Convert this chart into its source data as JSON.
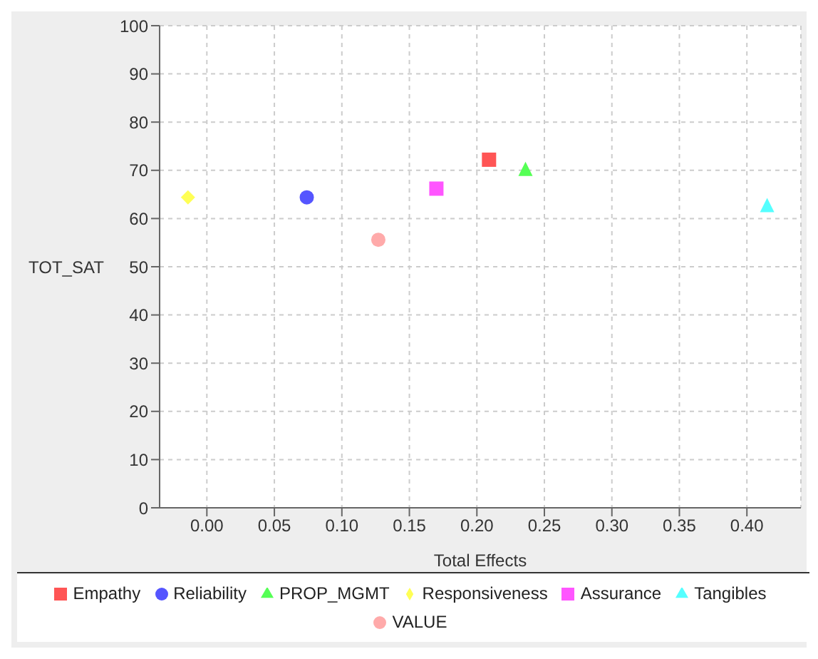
{
  "chart_data": {
    "type": "scatter",
    "xlabel": "Total Effects",
    "ylabel": "TOT_SAT",
    "xlim": [
      -0.035,
      0.44
    ],
    "xticks": [
      {
        "value": 0,
        "label": "0.00"
      },
      {
        "value": 0.05,
        "label": "0.05"
      },
      {
        "value": 0.1,
        "label": "0.10"
      },
      {
        "value": 0.15,
        "label": "0.15"
      },
      {
        "value": 0.2,
        "label": "0.20"
      },
      {
        "value": 0.25,
        "label": "0.25"
      },
      {
        "value": 0.3,
        "label": "0.30"
      },
      {
        "value": 0.35,
        "label": "0.35"
      },
      {
        "value": 0.4,
        "label": "0.40"
      }
    ],
    "ylim": [
      0,
      100
    ],
    "yticks": [
      0,
      10,
      20,
      30,
      40,
      50,
      60,
      70,
      80,
      90,
      100
    ],
    "grid": true,
    "legend": "bottom",
    "series": [
      {
        "name": "Empathy",
        "color": "#ff5555",
        "marker": "square",
        "x": [
          0.209
        ],
        "values": [
          72.2
        ]
      },
      {
        "name": "Reliability",
        "color": "#5555ff",
        "marker": "circle",
        "x": [
          0.074
        ],
        "values": [
          64.4
        ]
      },
      {
        "name": "PROP_MGMT",
        "color": "#55ff55",
        "marker": "triangle",
        "x": [
          0.236
        ],
        "values": [
          70.3
        ]
      },
      {
        "name": "Responsiveness",
        "color": "#ffff55",
        "marker": "diamond",
        "x": [
          -0.014
        ],
        "values": [
          64.4
        ]
      },
      {
        "name": "Assurance",
        "color": "#ff55ff",
        "marker": "square",
        "x": [
          0.17
        ],
        "values": [
          66.2
        ]
      },
      {
        "name": "Tangibles",
        "color": "#55ffff",
        "marker": "triangle",
        "x": [
          0.415
        ],
        "values": [
          62.8
        ]
      },
      {
        "name": "VALUE",
        "color": "#ffaaaa",
        "marker": "circle",
        "x": [
          0.127
        ],
        "values": [
          55.6
        ]
      }
    ]
  }
}
